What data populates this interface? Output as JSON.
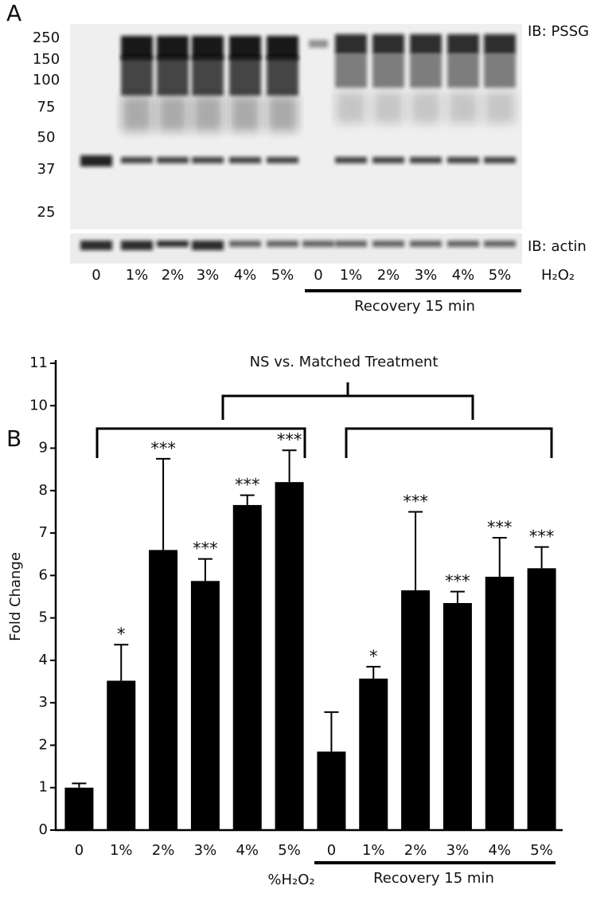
{
  "panel_a": {
    "label": "A",
    "blot_label": "IB: PSSG",
    "loading_label": "IB: actin",
    "mw_markers": [
      "250",
      "150",
      "100",
      "75",
      "50",
      "37",
      "25"
    ],
    "lanes": [
      "0",
      "1%",
      "2%",
      "3%",
      "4%",
      "5%",
      "0",
      "1%",
      "2%",
      "3%",
      "4%",
      "5%"
    ],
    "treatment": "H₂O₂",
    "recovery": "Recovery  15 min"
  },
  "chart_data": {
    "type": "bar",
    "panel_label": "B",
    "categories": [
      "0",
      "1%",
      "2%",
      "3%",
      "4%",
      "5%",
      "0",
      "1%",
      "2%",
      "3%",
      "4%",
      "5%"
    ],
    "values": [
      1.0,
      3.52,
      6.6,
      5.87,
      7.66,
      8.2,
      1.85,
      3.57,
      5.65,
      5.35,
      5.97,
      6.17
    ],
    "errors": [
      0.1,
      0.85,
      2.15,
      0.52,
      0.23,
      0.75,
      0.93,
      0.28,
      1.85,
      0.27,
      0.92,
      0.5
    ],
    "annotations": [
      null,
      "*",
      "***",
      "***",
      "***",
      "***",
      null,
      "*",
      "***",
      "***",
      "***",
      "***"
    ],
    "color": "#000000",
    "ylabel": "Fold Change",
    "xlabel": "%H₂O₂",
    "group_label": "Recovery  15 min",
    "comparison": "NS vs. Matched Treatment",
    "ylim": [
      0,
      11
    ],
    "yticks": [
      0,
      1,
      2,
      3,
      4,
      5,
      6,
      7,
      8,
      9,
      10,
      11
    ]
  }
}
